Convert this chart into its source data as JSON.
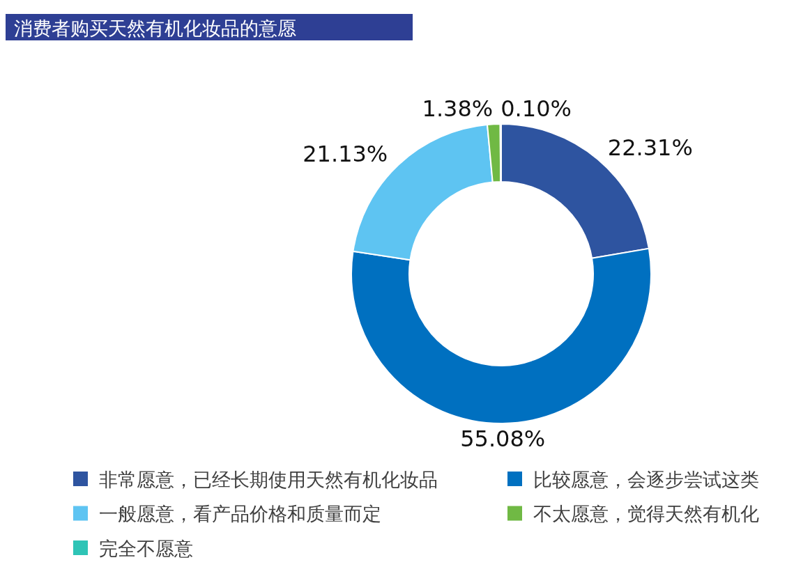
{
  "chart_data": {
    "type": "donut",
    "title": "消费者购买天然有机化妆品的意愿",
    "categories": [
      "非常愿意，已经长期使用天然有机化妆品",
      "比较愿意，会逐步尝试这类",
      "一般愿意，看产品价格和质量而定",
      "不太愿意，觉得天然有机化",
      "完全不愿意"
    ],
    "values": [
      22.31,
      55.08,
      21.13,
      1.38,
      0.1
    ],
    "colors": [
      "#2e54a0",
      "#0070c0",
      "#5ec4f2",
      "#70b944",
      "#2ec4b6"
    ],
    "value_labels": [
      "22.31%",
      "55.08%",
      "21.13%",
      "1.38%",
      "0.10%"
    ],
    "legend": "bottom"
  }
}
